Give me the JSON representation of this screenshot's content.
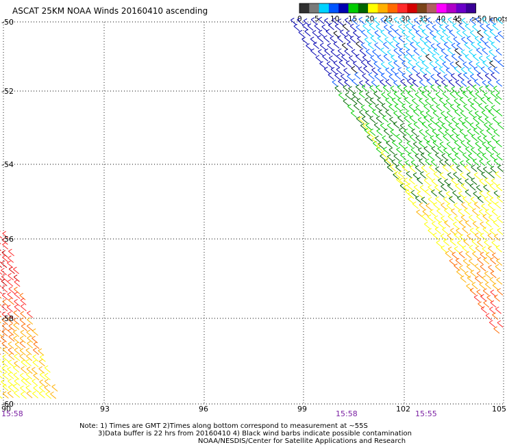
{
  "title": "ASCAT 25KM NOAA Winds 20160410 ascending",
  "colorbar": {
    "segments": [
      {
        "color": "#303030"
      },
      {
        "color": "#7a7a7a"
      },
      {
        "color": "#00d2ff"
      },
      {
        "color": "#0055ff"
      },
      {
        "color": "#0000b0"
      },
      {
        "color": "#00cc00"
      },
      {
        "color": "#006600"
      },
      {
        "color": "#ffff00"
      },
      {
        "color": "#ffb000"
      },
      {
        "color": "#ff6a00"
      },
      {
        "color": "#ff2a2a"
      },
      {
        "color": "#d40000"
      },
      {
        "color": "#7a4418"
      },
      {
        "color": "#b06060"
      },
      {
        "color": "#ff00ff"
      },
      {
        "color": "#b000c8"
      },
      {
        "color": "#6a00c8"
      },
      {
        "color": "#3a0096"
      }
    ],
    "labels": [
      "0",
      "5",
      "10",
      "15",
      "20",
      "25",
      "30",
      "35",
      "40",
      "45",
      ">50 knots"
    ]
  },
  "axes": {
    "lat_labels": [
      "-50",
      "-52",
      "-54",
      "-56",
      "-58",
      "-60"
    ],
    "lon_labels": [
      "90",
      "93",
      "96",
      "99",
      "102",
      "105"
    ]
  },
  "times": [
    "15:58",
    "15:58",
    "15:55"
  ],
  "notes": [
    "Note: 1) Times are GMT 2)Times along bottom correspond to measurement at ~55S",
    "3)Data buffer is 22 hrs from 20160410 4) Black wind barbs indicate possible contamination",
    "NOAA/NESDIS/Center for Satellite Applications and Research"
  ]
}
